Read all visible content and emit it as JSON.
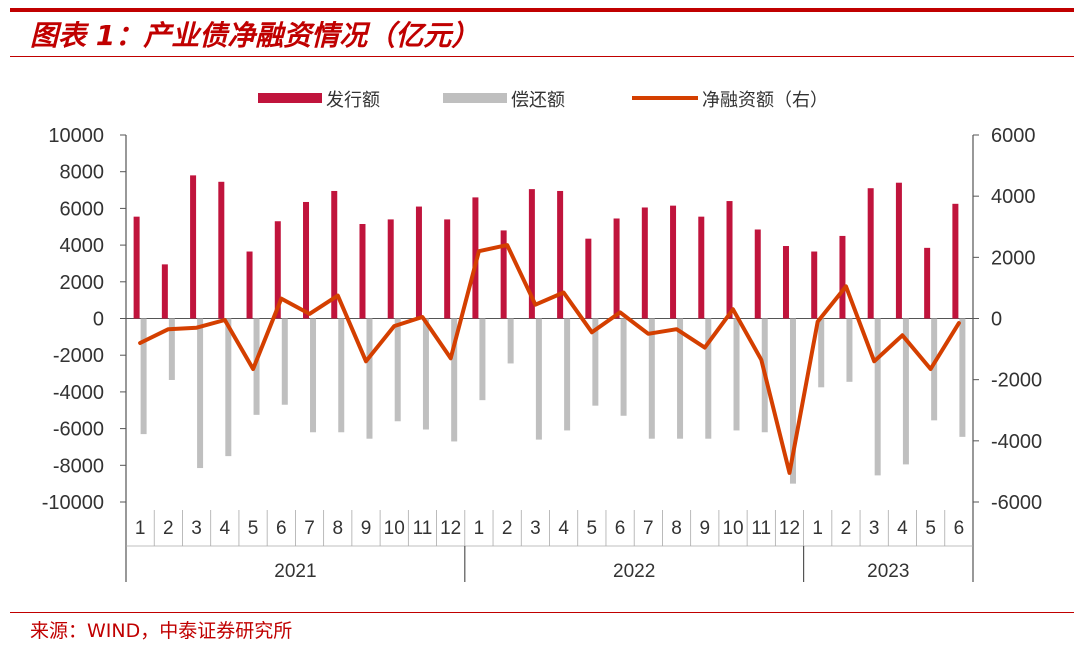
{
  "header": {
    "title": "图表 1：产业债净融资情况（亿元）",
    "source": "来源：WIND，中泰证券研究所"
  },
  "colors": {
    "accent": "#c00000",
    "issuance": "#c0143c",
    "repayment": "#bfbfbf",
    "net": "#d43f00"
  },
  "chart_data": {
    "type": "bar",
    "title": "",
    "categories": [
      "1",
      "2",
      "3",
      "4",
      "5",
      "6",
      "7",
      "8",
      "9",
      "10",
      "11",
      "12",
      "1",
      "2",
      "3",
      "4",
      "5",
      "6",
      "7",
      "8",
      "9",
      "10",
      "11",
      "12",
      "1",
      "2",
      "3",
      "4",
      "5",
      "6"
    ],
    "year_groups": [
      {
        "label": "2021",
        "count": 12
      },
      {
        "label": "2022",
        "count": 12
      },
      {
        "label": "2023",
        "count": 6
      }
    ],
    "y_left": {
      "lim": [
        -10000,
        10000
      ],
      "ticks": [
        "10000",
        "8000",
        "6000",
        "4000",
        "2000",
        "0",
        "-2000",
        "-4000",
        "-6000",
        "-8000",
        "-10000"
      ]
    },
    "y_right": {
      "lim": [
        -6000,
        6000
      ],
      "ticks": [
        "6000",
        "4000",
        "2000",
        "0",
        "-2000",
        "-4000",
        "-6000"
      ]
    },
    "legend_position": "top",
    "series": [
      {
        "name": "发行额",
        "type": "bar",
        "axis": "left",
        "values": [
          5550,
          2950,
          7800,
          7450,
          3650,
          5300,
          6350,
          6950,
          5150,
          5400,
          6100,
          5400,
          6600,
          4800,
          7050,
          6950,
          4350,
          5450,
          6050,
          6150,
          5550,
          6400,
          4850,
          3950,
          3650,
          4500,
          7100,
          7400,
          3850,
          6250
        ]
      },
      {
        "name": "偿还额",
        "type": "bar",
        "axis": "left",
        "values": [
          -6300,
          -3350,
          -8150,
          -7500,
          -5250,
          -4700,
          -6200,
          -6200,
          -6550,
          -5600,
          -6050,
          -6700,
          -4450,
          -2450,
          -6600,
          -6100,
          -4750,
          -5300,
          -6550,
          -6550,
          -6550,
          -6100,
          -6200,
          -9000,
          -3750,
          -3450,
          -8550,
          -7950,
          -5550,
          -6450
        ]
      },
      {
        "name": "净融资额（右）",
        "type": "line",
        "axis": "right",
        "values": [
          -800,
          -350,
          -300,
          -50,
          -1650,
          650,
          150,
          750,
          -1400,
          -250,
          50,
          -1300,
          2200,
          2400,
          450,
          850,
          -450,
          200,
          -500,
          -350,
          -950,
          300,
          -1350,
          -5050,
          -100,
          1050,
          -1400,
          -550,
          -1650,
          -150
        ]
      }
    ]
  }
}
